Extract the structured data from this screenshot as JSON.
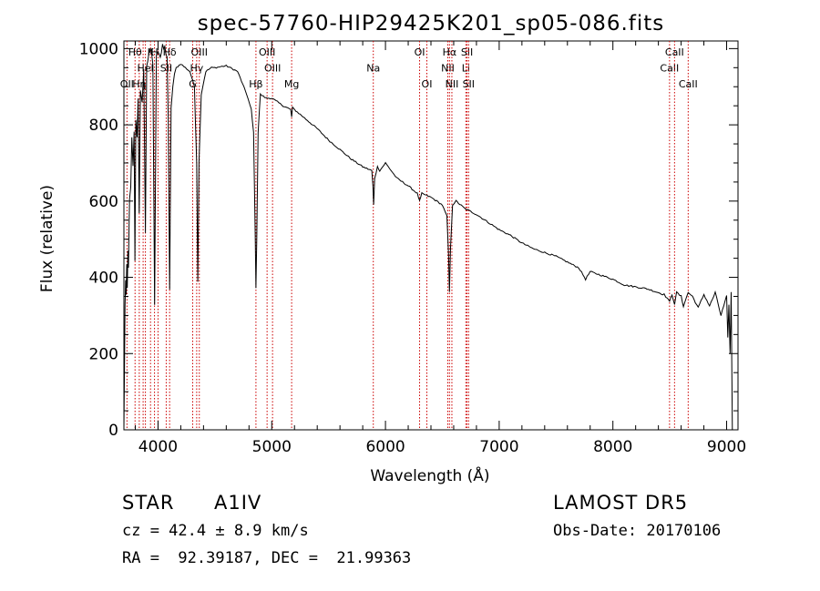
{
  "chart_data": {
    "type": "line",
    "title": "spec-57760-HIP29425K201_sp05-086.fits",
    "xlabel": "Wavelength (Å)",
    "ylabel": "Flux (relative)",
    "xlim": [
      3700,
      9100
    ],
    "ylim": [
      0,
      1020
    ],
    "xticks": [
      4000,
      5000,
      6000,
      7000,
      8000,
      9000
    ],
    "yticks": [
      0,
      200,
      400,
      600,
      800,
      1000
    ],
    "grid": false,
    "line_color": "#000000",
    "marker_color": "#cc0000",
    "series": [
      {
        "x": [
          3700,
          3705,
          3710,
          3715,
          3720,
          3725,
          3730,
          3735,
          3740,
          3745,
          3750,
          3760,
          3770,
          3780,
          3790,
          3797,
          3805,
          3815,
          3825,
          3835,
          3845,
          3860,
          3875,
          3889,
          3900,
          3920,
          3940,
          3955,
          3970,
          3985,
          4000,
          4020,
          4040,
          4060,
          4080,
          4090,
          4102,
          4115,
          4130,
          4160,
          4200,
          4240,
          4280,
          4320,
          4340,
          4350,
          4360,
          4380,
          4420,
          4470,
          4500,
          4600,
          4700,
          4780,
          4820,
          4840,
          4855,
          4861,
          4868,
          4880,
          4900,
          4950,
          5000,
          5100,
          5167,
          5175,
          5183,
          5200,
          5300,
          5400,
          5500,
          5600,
          5700,
          5800,
          5880,
          5890,
          5896,
          5905,
          5930,
          5950,
          6000,
          6050,
          6100,
          6150,
          6200,
          6280,
          6300,
          6320,
          6400,
          6500,
          6540,
          6555,
          6563,
          6572,
          6590,
          6620,
          6700,
          6800,
          6900,
          7000,
          7100,
          7200,
          7300,
          7400,
          7500,
          7600,
          7700,
          7760,
          7800,
          7900,
          8000,
          8100,
          8200,
          8300,
          8400,
          8450,
          8480,
          8498,
          8520,
          8542,
          8560,
          8600,
          8620,
          8662,
          8700,
          8750,
          8800,
          8850,
          8900,
          8950,
          9000,
          9010,
          9020,
          9030,
          9040,
          9050
        ],
        "y": [
          0,
          160,
          320,
          380,
          350,
          430,
          380,
          460,
          420,
          520,
          600,
          640,
          760,
          700,
          780,
          450,
          820,
          760,
          860,
          560,
          900,
          860,
          940,
          520,
          960,
          980,
          1000,
          960,
          320,
          990,
          1000,
          980,
          1000,
          1000,
          980,
          800,
          360,
          850,
          900,
          950,
          960,
          950,
          940,
          900,
          700,
          390,
          700,
          880,
          940,
          950,
          950,
          955,
          940,
          880,
          840,
          780,
          500,
          370,
          500,
          780,
          880,
          870,
          870,
          850,
          840,
          820,
          845,
          840,
          815,
          790,
          760,
          735,
          710,
          690,
          680,
          640,
          590,
          660,
          690,
          680,
          700,
          680,
          660,
          650,
          640,
          620,
          600,
          620,
          610,
          590,
          560,
          460,
          360,
          480,
          590,
          600,
          580,
          565,
          545,
          525,
          510,
          490,
          475,
          465,
          455,
          440,
          425,
          395,
          415,
          405,
          395,
          380,
          375,
          370,
          360,
          355,
          345,
          335,
          355,
          330,
          360,
          350,
          325,
          360,
          350,
          320,
          355,
          325,
          360,
          300,
          350,
          240,
          330,
          200,
          360,
          0
        ]
      }
    ],
    "line_markers": [
      {
        "x": 3727,
        "label": "OII",
        "row": 2
      },
      {
        "x": 3798,
        "label": "Hθ",
        "row": 0
      },
      {
        "x": 3835,
        "label": "Hη",
        "row": 2
      },
      {
        "x": 3869,
        "label": "",
        "row": 1
      },
      {
        "x": 3889,
        "label": "HeI",
        "row": 1
      },
      {
        "x": 3934,
        "label": "K",
        "row": 0
      },
      {
        "x": 3969,
        "label": "H",
        "row": 0
      },
      {
        "x": 4000,
        "label": "",
        "row": 0
      },
      {
        "x": 4072,
        "label": "SII",
        "row": 1
      },
      {
        "x": 4102,
        "label": "Hδ",
        "row": 0
      },
      {
        "x": 4305,
        "label": "G",
        "row": 2
      },
      {
        "x": 4340,
        "label": "Hγ",
        "row": 1
      },
      {
        "x": 4363,
        "label": "OIII",
        "row": 0
      },
      {
        "x": 4861,
        "label": "Hβ",
        "row": 2
      },
      {
        "x": 4959,
        "label": "OIII",
        "row": 0
      },
      {
        "x": 5007,
        "label": "OIII",
        "row": 1
      },
      {
        "x": 5175,
        "label": "Mg",
        "row": 2
      },
      {
        "x": 5893,
        "label": "Na",
        "row": 1
      },
      {
        "x": 6300,
        "label": "OI",
        "row": 0
      },
      {
        "x": 6364,
        "label": "OI",
        "row": 2
      },
      {
        "x": 6548,
        "label": "NII",
        "row": 1
      },
      {
        "x": 6563,
        "label": "Hα",
        "row": 0
      },
      {
        "x": 6584,
        "label": "NII",
        "row": 2
      },
      {
        "x": 6707,
        "label": "Li",
        "row": 1
      },
      {
        "x": 6717,
        "label": "SII",
        "row": 0
      },
      {
        "x": 6731,
        "label": "SII",
        "row": 2
      },
      {
        "x": 8498,
        "label": "CaII",
        "row": 1
      },
      {
        "x": 8542,
        "label": "CaII",
        "row": 0
      },
      {
        "x": 8662,
        "label": "CaII",
        "row": 2
      }
    ]
  },
  "info": {
    "class_label": "STAR",
    "subclass": "A1IV",
    "survey": "LAMOST DR5",
    "redshift": "cz = 42.4 ± 8.9 km/s",
    "obs_date": "Obs-Date: 20170106",
    "coords": "RA =  92.39187, DEC =  21.99363"
  }
}
